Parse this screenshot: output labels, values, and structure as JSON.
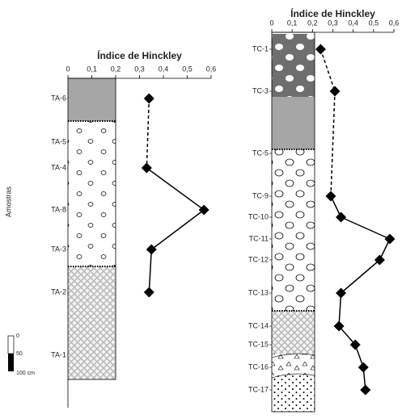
{
  "chart_data": [
    {
      "type": "line",
      "title": "Índice de Hinckley",
      "ylabel": "Amostras",
      "categories": [
        "TA-6",
        "TA-5",
        "TA-4",
        "TA-8",
        "TA-3",
        "TA-2",
        "TA-1"
      ],
      "values": [
        0.34,
        null,
        0.33,
        0.57,
        0.35,
        0.34,
        null
      ],
      "segment_styles": [
        null,
        null,
        "dashed",
        "solid",
        "solid",
        "solid",
        null
      ],
      "color": "#000000",
      "xlim": [
        0,
        0.6
      ],
      "xticks": [
        0,
        {
          "value": 0.1,
          "label": "0,1"
        },
        {
          "value": 0.2,
          "label": "0,2"
        },
        {
          "value": 0.3,
          "label": "0,3"
        },
        {
          "value": 0.4,
          "label": "0,4"
        },
        {
          "value": 0.5,
          "label": "0,5"
        },
        {
          "value": 0.6,
          "label": "0,6"
        }
      ],
      "scale_labels": [
        "0",
        "50",
        "100 cm"
      ]
    },
    {
      "type": "line",
      "title": "Índice de Hinckley",
      "categories": [
        "TC-1",
        "TC-3",
        "TC-5",
        "TC-9",
        "TC-10",
        "TC-11",
        "TC-12",
        "TC-13",
        "TC-14",
        "TC-15",
        "TC-16",
        "TC-17"
      ],
      "values": [
        0.24,
        0.31,
        null,
        0.29,
        0.34,
        0.58,
        0.53,
        0.34,
        0.33,
        0.41,
        0.45,
        0.46
      ],
      "segment_styles": [
        null,
        "dashed",
        null,
        "dashed",
        "solid",
        "solid",
        "solid",
        "solid",
        "solid",
        "solid",
        "solid",
        "solid"
      ],
      "color": "#000000",
      "xlim": [
        0,
        0.6
      ],
      "xticks": [
        0,
        {
          "value": 0.1,
          "label": "0,1"
        },
        {
          "value": 0.2,
          "label": "0,2"
        },
        {
          "value": 0.3,
          "label": "0,3"
        },
        {
          "value": 0.4,
          "label": "0,4"
        },
        {
          "value": 0.5,
          "label": "0,5"
        },
        {
          "value": 0.6,
          "label": "0,6"
        }
      ]
    }
  ]
}
